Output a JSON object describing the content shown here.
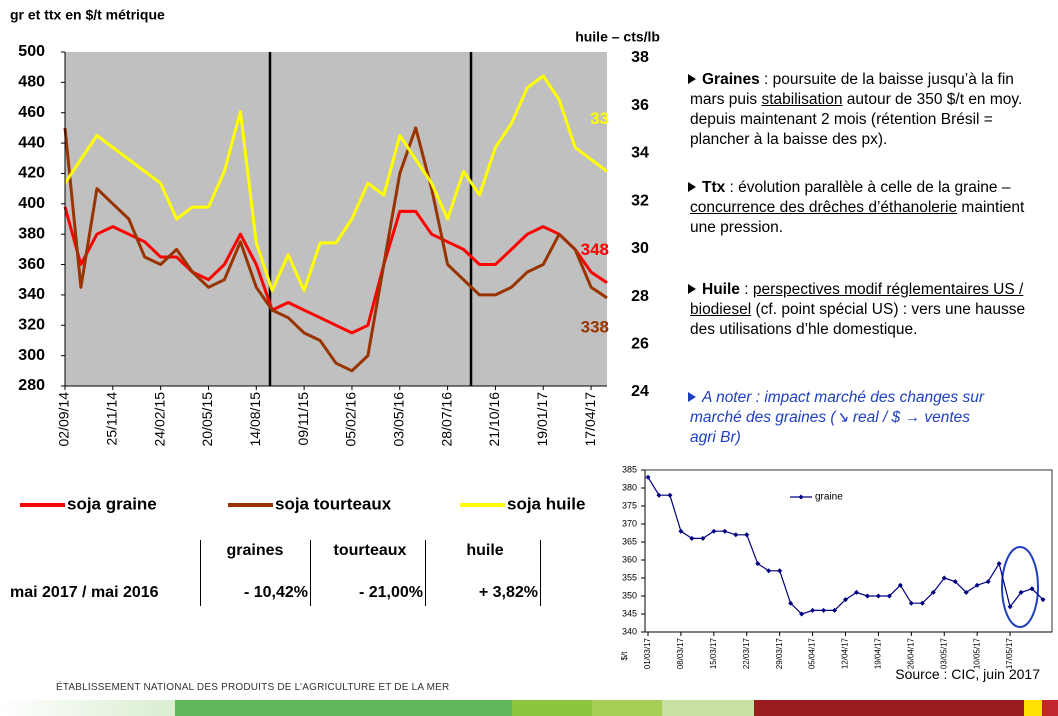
{
  "chart_data": [
    {
      "type": "line",
      "y_label": "gr et ttx en $/t métrique",
      "y2_label": "huile – cts/lb",
      "background": "#c0c0c0",
      "legend": "bottom",
      "categories": [
        "02/09/14",
        null,
        null,
        "25/11/14",
        null,
        null,
        "24/02/15",
        null,
        null,
        "20/05/15",
        null,
        null,
        "14/08/15",
        null,
        null,
        "09/11/15",
        null,
        null,
        "05/02/16",
        null,
        null,
        "03/05/16",
        null,
        null,
        "28/07/16",
        null,
        null,
        "21/10/16",
        null,
        null,
        "19/01/17",
        null,
        null,
        "17/04/17",
        null
      ],
      "ylim": [
        280,
        500
      ],
      "yticks": [
        280,
        300,
        320,
        340,
        360,
        380,
        400,
        420,
        440,
        460,
        480,
        500
      ],
      "y2lim": [
        24,
        38
      ],
      "y2ticks": [
        24,
        26,
        28,
        30,
        32,
        34,
        36,
        38
      ],
      "series": [
        {
          "name": "soja graine",
          "color": "#ff0000",
          "axis": "y",
          "values": [
            398,
            360,
            380,
            385,
            380,
            375,
            365,
            365,
            355,
            350,
            360,
            380,
            360,
            330,
            335,
            330,
            325,
            320,
            315,
            320,
            360,
            395,
            395,
            380,
            375,
            370,
            360,
            360,
            370,
            380,
            385,
            380,
            370,
            355,
            348
          ]
        },
        {
          "name": "soja tourteaux",
          "color": "#993300",
          "axis": "y",
          "values": [
            450,
            345,
            410,
            400,
            390,
            365,
            360,
            370,
            355,
            345,
            350,
            375,
            345,
            330,
            325,
            315,
            310,
            295,
            290,
            300,
            360,
            420,
            450,
            410,
            360,
            350,
            340,
            340,
            345,
            355,
            360,
            380,
            370,
            345,
            338
          ]
        },
        {
          "name": "soja huile",
          "color": "#ffff00",
          "axis": "y2",
          "values": [
            32.5,
            33.5,
            34.5,
            34,
            33.5,
            33,
            32.5,
            31,
            31.5,
            31.5,
            33,
            35.5,
            30,
            28,
            29.5,
            28,
            30,
            30,
            31,
            32.5,
            32,
            34.5,
            33.5,
            32.5,
            31,
            33,
            32,
            34,
            35,
            36.5,
            37,
            36,
            34,
            33.5,
            33
          ]
        }
      ]
    },
    {
      "type": "line",
      "y_label": "$/t",
      "legend": "top",
      "categories": [
        "01/03/17",
        null,
        null,
        "08/03/17",
        null,
        null,
        "15/03/17",
        null,
        null,
        "22/03/17",
        null,
        null,
        "29/03/17",
        null,
        null,
        "05/04/17",
        null,
        null,
        "12/04/17",
        null,
        null,
        "19/04/17",
        null,
        null,
        "26/04/17",
        null,
        null,
        "03/05/17",
        null,
        null,
        "10/05/17",
        null,
        null,
        "17/05/17",
        null,
        null,
        null
      ],
      "ylim": [
        340,
        385
      ],
      "yticks": [
        340,
        345,
        350,
        355,
        360,
        365,
        370,
        375,
        380,
        385
      ],
      "series": [
        {
          "name": "graine",
          "color": "#000080",
          "values": [
            383,
            378,
            378,
            368,
            366,
            366,
            368,
            368,
            367,
            367,
            359,
            357,
            357,
            348,
            345,
            346,
            346,
            346,
            349,
            351,
            350,
            350,
            350,
            353,
            348,
            348,
            351,
            355,
            354,
            351,
            353,
            354,
            359,
            347,
            351,
            352,
            349
          ]
        }
      ]
    }
  ],
  "bullets": [
    [
      "Graines",
      " : poursuite de la baisse jusqu’à la fin mars puis ",
      "stabilisation",
      " autour de 350 $/t en moy. depuis maintenant 2 mois (rétention Brésil = plancher à la baisse des px)."
    ],
    [
      "Ttx",
      " : évolution parallèle à celle de la graine – ",
      "concurrence des drêches d’éthanolerie",
      " maintient une pression."
    ],
    [
      "Huile",
      " : ",
      "perspectives modif réglementaires US / biodiesel",
      " (cf. point spécial US) : vers une hausse des utilisations d’hle domestique."
    ]
  ],
  "note": "A noter : impact marché des changes sur marché des graines (↘ real / $ → ventes agri Br)",
  "table": {
    "header": [
      "graines",
      "tourteaux",
      "huile"
    ],
    "rows": [
      [
        "mai 2017 / mai 2016",
        "- 10,42%",
        "- 21,00%",
        "+ 3,82%"
      ]
    ]
  },
  "footer": {
    "agency": "ÉTABLISSEMENT NATIONAL DES PRODUITS DE L’AGRICULTURE ET DE LA MER",
    "source": "Source : CIC, juin 2017"
  }
}
